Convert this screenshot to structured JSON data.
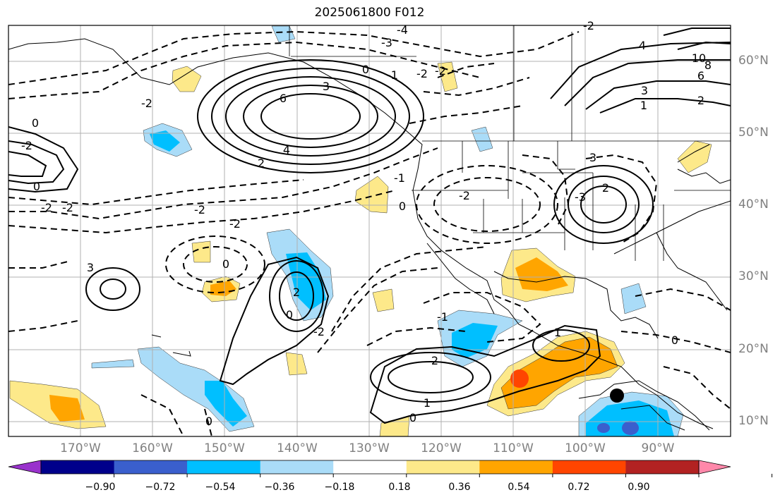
{
  "title": "2025061800 F012",
  "latitude_labels": [
    "60°N",
    "50°N",
    "40°N",
    "30°N",
    "20°N",
    "10°N"
  ],
  "longitude_labels": [
    "170°W",
    "160°W",
    "150°W",
    "140°W",
    "130°W",
    "120°W",
    "110°W",
    "100°W",
    "90°W"
  ],
  "colorbar": {
    "ticks": [
      "−0.90",
      "−0.72",
      "−0.54",
      "−0.36",
      "−0.18",
      "0.18",
      "0.36",
      "0.54",
      "0.72",
      "0.90"
    ],
    "colors": [
      "#9932cc",
      "#00008b",
      "#3a5fcd",
      "#00bfff",
      "#aadcf8",
      "#ffffff",
      "#fde98a",
      "#ffa500",
      "#ff4500",
      "#b22222",
      "#ff88aa"
    ]
  },
  "contour_labels": [
    "-4",
    "-3",
    "-2",
    "0",
    "-1",
    "-2",
    "-2",
    "10",
    "8",
    "6",
    "3",
    "2",
    "6",
    "3",
    "4",
    "-2",
    "-2",
    "0",
    "2",
    "-2",
    "-2",
    "-2",
    "-2",
    "0",
    "3",
    "2",
    "-3",
    "0",
    "3",
    "2",
    "0",
    "-2",
    "-1",
    "1",
    "2",
    "-1",
    "1",
    "0",
    "0",
    "0",
    "4",
    "1",
    "-2",
    "0"
  ],
  "map_layers": {
    "coastlines": "black",
    "state_borders": "black",
    "gridlines": "gray"
  }
}
